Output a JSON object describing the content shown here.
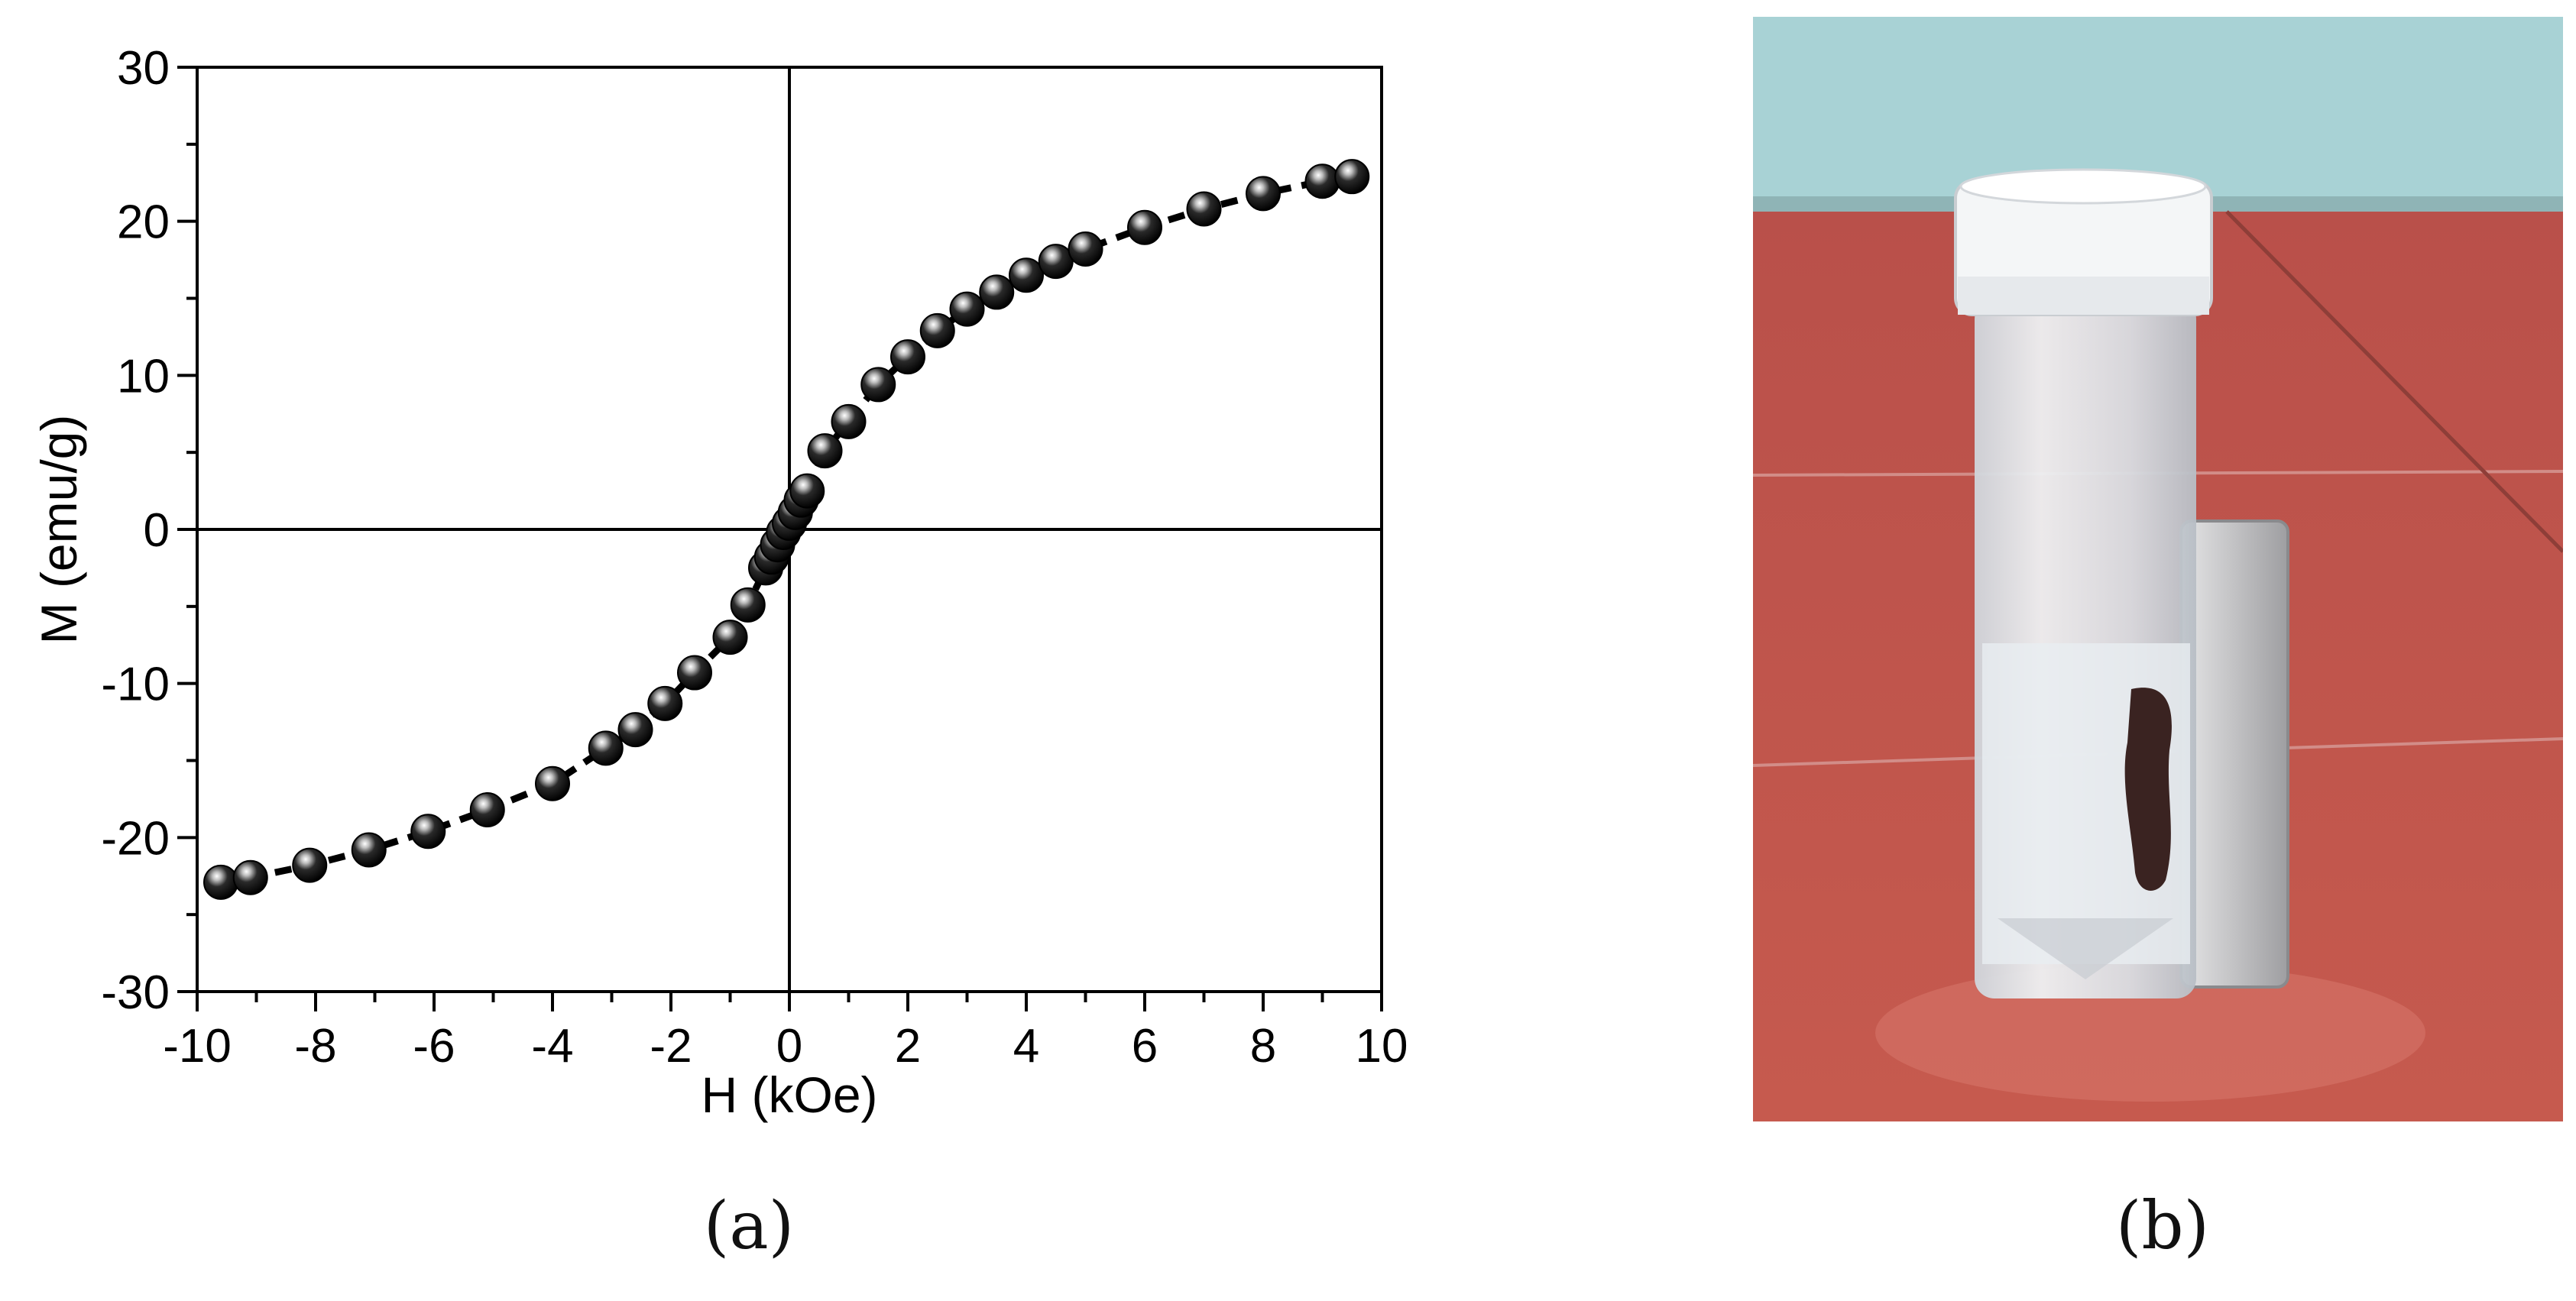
{
  "chart_data": {
    "type": "scatter",
    "xlabel": "H (kOe)",
    "ylabel": "M (emu/g)",
    "xlim": [
      -10,
      10
    ],
    "ylim": [
      -30,
      30
    ],
    "xticks": [
      -10,
      -8,
      -6,
      -4,
      -2,
      0,
      2,
      4,
      6,
      8,
      10
    ],
    "yticks": [
      -30,
      -20,
      -10,
      0,
      10,
      20,
      30
    ],
    "grid": false,
    "line_style": "dashed",
    "marker": "black sphere",
    "x": [
      -9.6,
      -9.1,
      -8.1,
      -7.1,
      -6.1,
      -5.1,
      -4.0,
      -3.1,
      -2.6,
      -2.1,
      -1.6,
      -1.0,
      -0.7,
      -0.4,
      -0.3,
      -0.2,
      -0.1,
      0.0,
      0.1,
      0.2,
      0.3,
      0.6,
      1.0,
      1.5,
      2.0,
      2.5,
      3.0,
      3.5,
      4.0,
      4.5,
      5.0,
      6.0,
      7.0,
      8.0,
      9.0,
      9.5
    ],
    "y": [
      -22.9,
      -22.6,
      -21.8,
      -20.8,
      -19.6,
      -18.2,
      -16.5,
      -14.2,
      -13.0,
      -11.3,
      -9.3,
      -7.0,
      -4.9,
      -2.5,
      -1.8,
      -1.0,
      -0.2,
      0.4,
      1.1,
      1.9,
      2.5,
      5.1,
      7.0,
      9.4,
      11.2,
      12.9,
      14.3,
      15.4,
      16.5,
      17.4,
      18.2,
      19.6,
      20.8,
      21.8,
      22.6,
      22.9
    ]
  },
  "captions": {
    "a": "(a)",
    "b": "(b)"
  },
  "photo": {
    "description_colors": {
      "wall": "#a9d3d6",
      "floor": "#c3534a",
      "cap": "#f4f6f7",
      "vial": "#dfe2e6",
      "magnet": "#c9c9cb",
      "particles": "#3a2321"
    }
  }
}
